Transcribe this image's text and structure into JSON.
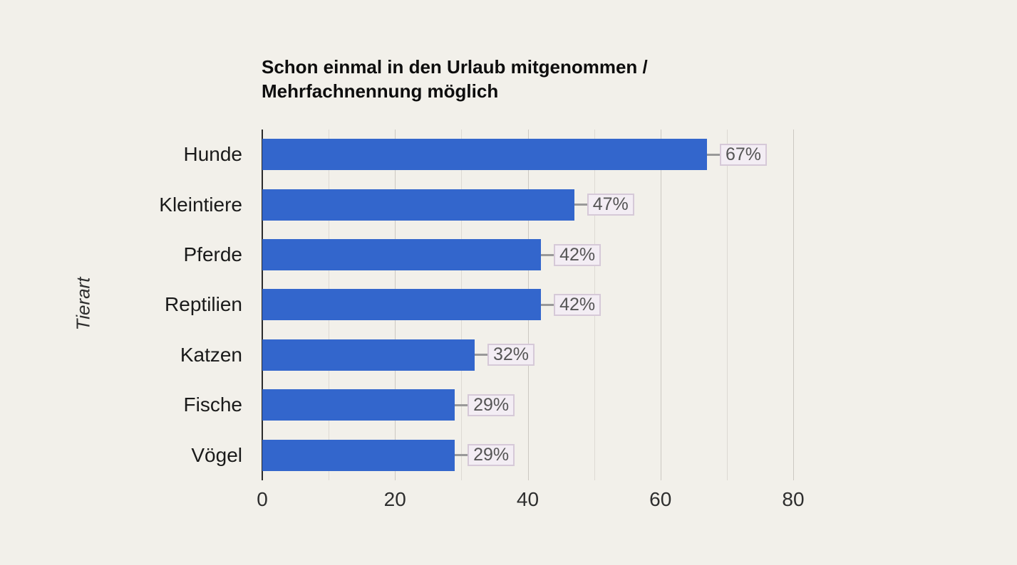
{
  "chart_data": {
    "type": "bar",
    "orientation": "horizontal",
    "title": "Schon einmal in den Urlaub mitgenommen / Mehrfachnennung möglich",
    "ylabel": "Tierart",
    "categories": [
      "Hunde",
      "Kleintiere",
      "Pferde",
      "Reptilien",
      "Katzen",
      "Fische",
      "Vögel"
    ],
    "values": [
      67,
      47,
      42,
      42,
      32,
      29,
      29
    ],
    "value_labels": [
      "67%",
      "47%",
      "42%",
      "42%",
      "32%",
      "29%",
      "29%"
    ],
    "xlim": [
      0,
      80
    ],
    "xticks": [
      0,
      20,
      40,
      60,
      80
    ],
    "gridlines_minor": [
      10,
      30,
      50,
      70
    ],
    "gridlines_major": [
      20,
      40,
      60,
      80
    ],
    "legend": "none",
    "colors": {
      "background": "#f2f0ea",
      "bar": "#3366cc",
      "gridline_minor": "#ddd9d3",
      "gridline_major": "#ccc8c2",
      "axis_line": "#2b2b2b",
      "label_box_fill": "#f3edf4",
      "label_box_border": "#d6c9d8",
      "label_box_text": "#555555",
      "connector": "#999999"
    }
  }
}
